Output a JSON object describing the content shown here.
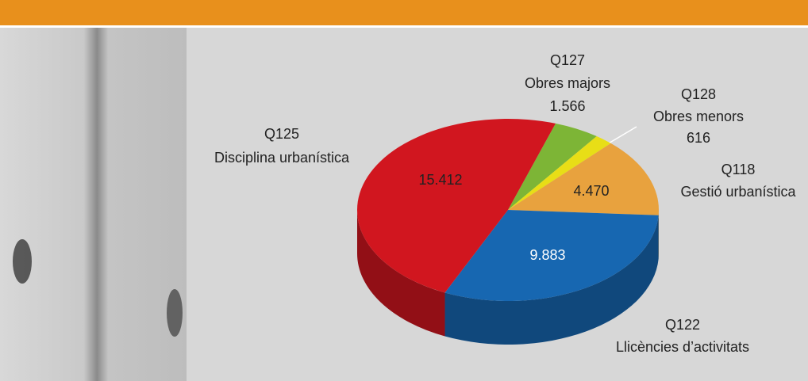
{
  "chart_data": {
    "type": "pie",
    "codes": [
      "Q127",
      "Q128",
      "Q118",
      "Q122",
      "Q125"
    ],
    "categories": [
      "Obres majors",
      "Obres menors",
      "Gestió urbanística",
      "Llicències d’activitats",
      "Disciplina urbanística"
    ],
    "values": [
      1566,
      616,
      4470,
      9883,
      15412
    ],
    "value_labels": [
      "1.566",
      "616",
      "4.470",
      "9.883",
      "15.412"
    ],
    "colors": [
      "#7db536",
      "#e8de16",
      "#e8a23e",
      "#1767b1",
      "#d1161f"
    ]
  }
}
